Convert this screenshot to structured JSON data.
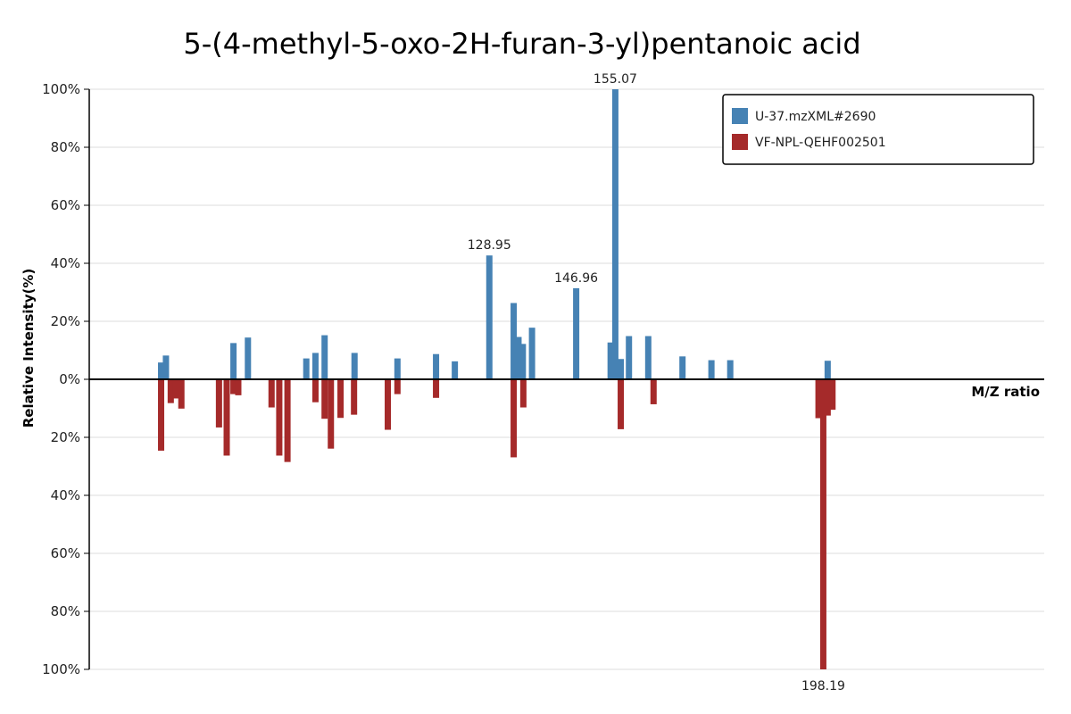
{
  "chart_data": {
    "type": "bar",
    "title": "5-(4-methyl-5-oxo-2H-furan-3-yl)pentanoic acid",
    "xlabel": "M/Z ratio",
    "ylabel": "Relative Intensity(%)",
    "x_range": [
      46,
      244
    ],
    "ylim": [
      -100,
      100
    ],
    "y_ticks": [
      {
        "value": 100,
        "label": "100%"
      },
      {
        "value": 80,
        "label": "80%"
      },
      {
        "value": 60,
        "label": "60%"
      },
      {
        "value": 40,
        "label": "40%"
      },
      {
        "value": 20,
        "label": "20%"
      },
      {
        "value": 0,
        "label": "0%"
      },
      {
        "value": -20,
        "label": "20%"
      },
      {
        "value": -40,
        "label": "40%"
      },
      {
        "value": -60,
        "label": "60%"
      },
      {
        "value": -80,
        "label": "80%"
      },
      {
        "value": -100,
        "label": "100%"
      }
    ],
    "grid": true,
    "legend_position": "top-right",
    "series": [
      {
        "name": "U-37.mzXML#2690",
        "color": "#4682b4",
        "direction": "up",
        "peaks": [
          {
            "mz": 60.9,
            "intensity": 5.8
          },
          {
            "mz": 61.9,
            "intensity": 8.2
          },
          {
            "mz": 75.9,
            "intensity": 12.5
          },
          {
            "mz": 78.9,
            "intensity": 14.4
          },
          {
            "mz": 91.0,
            "intensity": 7.2
          },
          {
            "mz": 92.9,
            "intensity": 9.1
          },
          {
            "mz": 94.8,
            "intensity": 15.2
          },
          {
            "mz": 101.0,
            "intensity": 9.1
          },
          {
            "mz": 109.9,
            "intensity": 7.2
          },
          {
            "mz": 117.9,
            "intensity": 8.7
          },
          {
            "mz": 121.8,
            "intensity": 6.2
          },
          {
            "mz": 128.95,
            "intensity": 42.7,
            "label": "128.95"
          },
          {
            "mz": 134.0,
            "intensity": 26.3
          },
          {
            "mz": 135.0,
            "intensity": 14.6
          },
          {
            "mz": 135.9,
            "intensity": 12.2
          },
          {
            "mz": 137.8,
            "intensity": 17.8
          },
          {
            "mz": 146.96,
            "intensity": 31.4,
            "label": "146.96"
          },
          {
            "mz": 154.1,
            "intensity": 12.7
          },
          {
            "mz": 155.07,
            "intensity": 100.0,
            "label": "155.07"
          },
          {
            "mz": 156.2,
            "intensity": 7.0
          },
          {
            "mz": 157.9,
            "intensity": 14.9
          },
          {
            "mz": 161.9,
            "intensity": 14.9
          },
          {
            "mz": 169.0,
            "intensity": 7.9
          },
          {
            "mz": 175.0,
            "intensity": 6.6
          },
          {
            "mz": 178.9,
            "intensity": 6.6
          },
          {
            "mz": 199.1,
            "intensity": 6.4
          }
        ]
      },
      {
        "name": "VF-NPL-QEHF002501",
        "color": "#a52a2a",
        "direction": "down",
        "peaks": [
          {
            "mz": 60.9,
            "intensity": 24.6
          },
          {
            "mz": 62.9,
            "intensity": 8.2
          },
          {
            "mz": 63.9,
            "intensity": 6.6
          },
          {
            "mz": 65.1,
            "intensity": 10.1
          },
          {
            "mz": 72.9,
            "intensity": 16.6
          },
          {
            "mz": 74.5,
            "intensity": 26.3
          },
          {
            "mz": 75.9,
            "intensity": 5.1
          },
          {
            "mz": 76.9,
            "intensity": 5.5
          },
          {
            "mz": 83.8,
            "intensity": 9.7
          },
          {
            "mz": 85.4,
            "intensity": 26.3
          },
          {
            "mz": 87.1,
            "intensity": 28.5
          },
          {
            "mz": 92.9,
            "intensity": 7.9
          },
          {
            "mz": 94.8,
            "intensity": 13.6
          },
          {
            "mz": 96.1,
            "intensity": 23.9
          },
          {
            "mz": 98.1,
            "intensity": 13.3
          },
          {
            "mz": 100.9,
            "intensity": 12.2
          },
          {
            "mz": 107.9,
            "intensity": 17.4
          },
          {
            "mz": 109.9,
            "intensity": 5.1
          },
          {
            "mz": 117.9,
            "intensity": 6.4
          },
          {
            "mz": 134.0,
            "intensity": 26.9
          },
          {
            "mz": 136.0,
            "intensity": 9.7
          },
          {
            "mz": 156.2,
            "intensity": 17.2
          },
          {
            "mz": 163.0,
            "intensity": 8.6
          },
          {
            "mz": 197.2,
            "intensity": 13.4
          },
          {
            "mz": 198.19,
            "intensity": 100.0,
            "label": "198.19"
          },
          {
            "mz": 199.1,
            "intensity": 12.5
          },
          {
            "mz": 200.1,
            "intensity": 10.5
          }
        ]
      }
    ]
  }
}
